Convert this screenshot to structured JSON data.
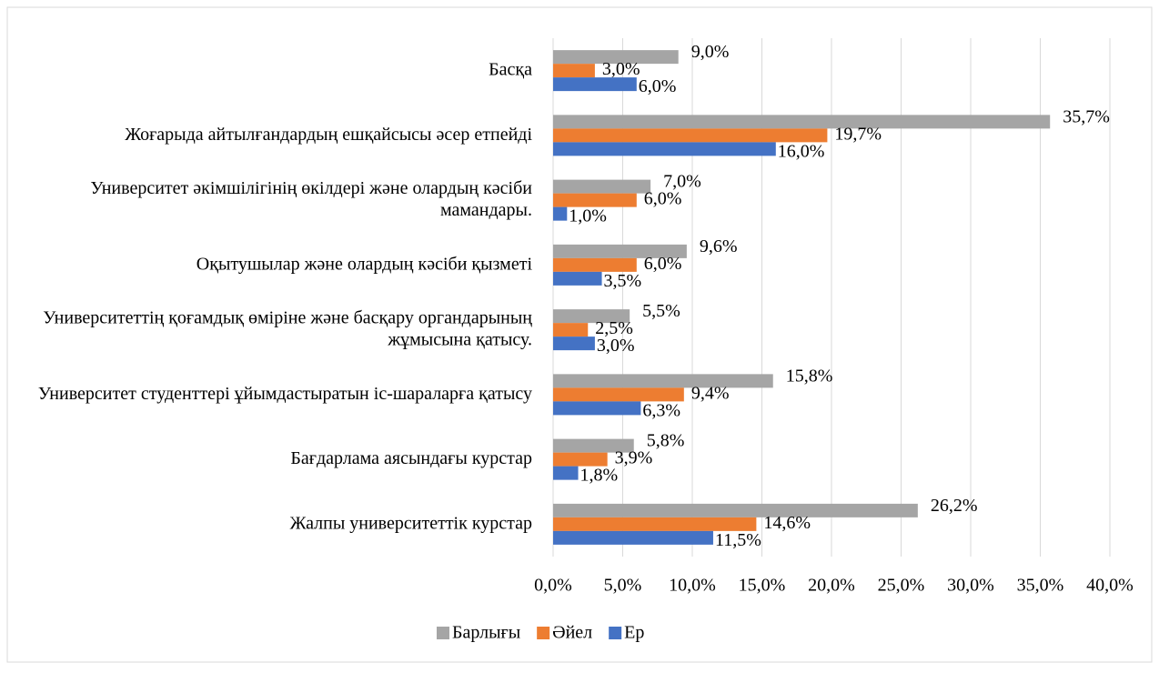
{
  "chart_data": {
    "type": "barh",
    "categories": [
      "Басқа",
      "Жоғарыда айтылғандардың ешқайсысы әсер етпейді",
      "Университет әкімшілігінің өкілдері және олардың кәсіби мамандары.",
      "Оқытушылар және олардың кәсіби қызметі",
      "Университеттің қоғамдық өміріне және басқару органдарының жұмысына қатысу.",
      "Университет студенттері ұйымдастыратын іс-шараларға қатысу",
      "Бағдарлама аясындағы курстар",
      "Жалпы университеттік курстар"
    ],
    "series": [
      {
        "name": "Барлығы",
        "color": "#a5a5a5",
        "values": [
          9.0,
          35.7,
          7.0,
          9.6,
          5.5,
          15.8,
          5.8,
          26.2
        ],
        "value_labels": [
          "9,0%",
          "35,7%",
          "7,0%",
          "9,6%",
          "5,5%",
          "15,8%",
          "5,8%",
          "26,2%"
        ]
      },
      {
        "name": "Әйел",
        "color": "#ed7d31",
        "values": [
          3.0,
          19.7,
          6.0,
          6.0,
          2.5,
          9.4,
          3.9,
          14.6
        ],
        "value_labels": [
          "3,0%",
          "19,7%",
          "6,0%",
          "6,0%",
          "2,5%",
          "9,4%",
          "3,9%",
          "14,6%"
        ]
      },
      {
        "name": "Ер",
        "color": "#4472c4",
        "values": [
          6.0,
          16.0,
          1.0,
          3.5,
          3.0,
          6.3,
          1.8,
          11.5
        ],
        "value_labels": [
          "6,0%",
          "16,0%",
          "1,0%",
          "3,5%",
          "3,0%",
          "6,3%",
          "1,8%",
          "11,5%"
        ]
      }
    ],
    "xlim": [
      0,
      40
    ],
    "xticks": [
      {
        "value": 0,
        "label": "0,0%"
      },
      {
        "value": 5,
        "label": "5,0%"
      },
      {
        "value": 10,
        "label": "10,0%"
      },
      {
        "value": 15,
        "label": "15,0%"
      },
      {
        "value": 20,
        "label": "20,0%"
      },
      {
        "value": 25,
        "label": "25,0%"
      },
      {
        "value": 30,
        "label": "30,0%"
      },
      {
        "value": 35,
        "label": "35,0%"
      },
      {
        "value": 40,
        "label": "40,0%"
      }
    ],
    "grid": true,
    "legend": "bottom"
  }
}
